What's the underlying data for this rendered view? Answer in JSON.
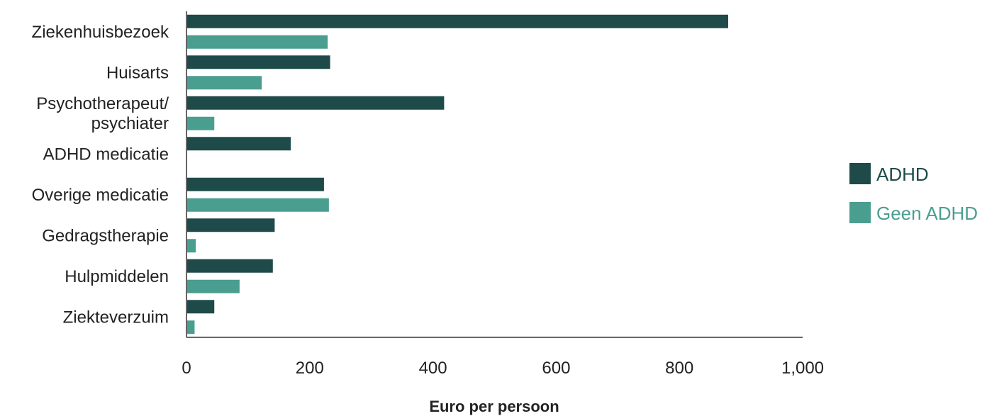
{
  "chart_data": {
    "type": "bar",
    "orientation": "horizontal",
    "title": "",
    "xlabel": "Euro per persoon",
    "ylabel": "",
    "xlim": [
      0,
      1000
    ],
    "xticks": [
      0,
      200,
      400,
      600,
      800,
      1000
    ],
    "xtick_labels": [
      "0",
      "200",
      "400",
      "600",
      "800",
      "1,000"
    ],
    "grid": false,
    "legend_position": "right",
    "categories": [
      [
        "Ziekenhuisbezoek"
      ],
      [
        "Huisarts"
      ],
      [
        "Psychotherapeut/",
        "psychiater"
      ],
      [
        "ADHD medicatie"
      ],
      [
        "Overige medicatie"
      ],
      [
        "Gedragstherapie"
      ],
      [
        "Hulpmiddelen"
      ],
      [
        "Ziekteverzuim"
      ]
    ],
    "series": [
      {
        "name": "ADHD",
        "color": "#1e4a4a",
        "values": [
          878,
          232,
          417,
          168,
          222,
          142,
          139,
          44
        ]
      },
      {
        "name": "Geen ADHD",
        "color": "#4a9e8f",
        "values": [
          228,
          121,
          44,
          0,
          230,
          14,
          85,
          12
        ]
      }
    ]
  }
}
